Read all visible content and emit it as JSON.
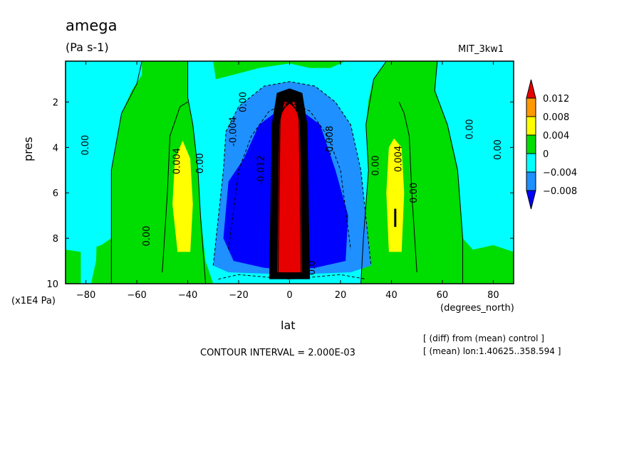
{
  "chart_data": {
    "type": "heatmap",
    "title": "amega",
    "units": "(Pa s-1)",
    "run_label": "MIT_3kw1",
    "xlabel": "lat",
    "x_units": "(degrees_north)",
    "ylabel": "pres",
    "y_multiplier": "(x1E4 Pa)",
    "xlim": [
      -88,
      88
    ],
    "ylim": [
      10,
      0.2
    ],
    "x_ticks": [
      -80,
      -60,
      -40,
      -20,
      0,
      20,
      40,
      60,
      80
    ],
    "y_ticks": [
      2,
      4,
      6,
      8,
      10
    ],
    "contour_interval_text": "CONTOUR INTERVAL = 2.000E-03",
    "notes": [
      "[ (diff) from (mean) control ]",
      "[ (mean) lon:1.40625..358.594 ]"
    ],
    "colorbar": {
      "levels": [
        "0.012",
        "0.008",
        "0.004",
        "0",
        "-0.004",
        "-0.008"
      ],
      "colors": [
        "#e60000",
        "#ff9900",
        "#ffff00",
        "#00dd00",
        "#00ffff",
        "#1e90ff",
        "#0000ff"
      ]
    },
    "contour_labels": [
      {
        "text": "0.00",
        "lat": -80,
        "pres": 3.9
      },
      {
        "text": "0.00",
        "lat": -56,
        "pres": 7.9
      },
      {
        "text": "0.004",
        "lat": -44,
        "pres": 4.6
      },
      {
        "text": "0.00",
        "lat": -35,
        "pres": 4.7
      },
      {
        "text": "-0.004",
        "lat": -22,
        "pres": 3.3
      },
      {
        "text": "0.00",
        "lat": -18,
        "pres": 2.0
      },
      {
        "text": "-0.012",
        "lat": -11,
        "pres": 5.0
      },
      {
        "text": "-0.008",
        "lat": 16,
        "pres": 3.7
      },
      {
        "text": "0.00",
        "lat": 34,
        "pres": 4.8
      },
      {
        "text": "0.004",
        "lat": 43,
        "pres": 4.5
      },
      {
        "text": "0.00",
        "lat": 49,
        "pres": 6.0
      },
      {
        "text": "0.00",
        "lat": 71,
        "pres": 3.2
      },
      {
        "text": "0.00",
        "lat": 82,
        "pres": 4.1
      },
      {
        "text": "0.0",
        "lat": 9,
        "pres": 9.3
      }
    ]
  }
}
